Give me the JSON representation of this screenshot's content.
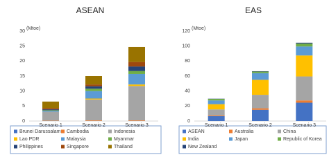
{
  "chart_data": [
    {
      "type": "stacked_bar",
      "title": "ASEAN",
      "y_label": "(Mtoe)",
      "categories": [
        "Scenario 1",
        "Scenario 2",
        "Scenario 3"
      ],
      "ylim": [
        0,
        30
      ],
      "yticks": [
        0,
        5,
        10,
        15,
        20,
        25,
        30
      ],
      "series": [
        {
          "name": "Brunei Darussalam",
          "color": "#4472c4",
          "values": [
            0,
            0,
            0
          ]
        },
        {
          "name": "Cambodia",
          "color": "#ed7d31",
          "values": [
            0.1,
            0.2,
            0.2
          ]
        },
        {
          "name": "Indonesia",
          "color": "#a5a5a5",
          "values": [
            3.0,
            7.0,
            11.5
          ]
        },
        {
          "name": "Lao PDR",
          "color": "#ffc000",
          "values": [
            0,
            0.3,
            0.5
          ]
        },
        {
          "name": "Malaysia",
          "color": "#5b9bd5",
          "values": [
            0.3,
            2.5,
            3.5
          ]
        },
        {
          "name": "Myanmar",
          "color": "#70ad47",
          "values": [
            0.2,
            0.8,
            1.0
          ]
        },
        {
          "name": "Philippines",
          "color": "#264478",
          "values": [
            0.3,
            0.8,
            1.5
          ]
        },
        {
          "name": "Singapore",
          "color": "#9e480e",
          "values": [
            0.4,
            0.6,
            1.5
          ]
        },
        {
          "name": "Thailand",
          "color": "#997300",
          "values": [
            2.2,
            2.8,
            5.0
          ]
        }
      ]
    },
    {
      "type": "stacked_bar",
      "title": "EAS",
      "y_label": "(Mtoe)",
      "categories": [
        "Scenario 1",
        "Scenario 2",
        "Scenario 3"
      ],
      "ylim": [
        0,
        120
      ],
      "yticks": [
        0,
        20,
        40,
        60,
        80,
        100,
        120
      ],
      "series": [
        {
          "name": "ASEAN",
          "color": "#4472c4",
          "values": [
            6.5,
            15,
            24.5
          ]
        },
        {
          "name": "Australia",
          "color": "#ed7d31",
          "values": [
            1,
            2,
            3
          ]
        },
        {
          "name": "China",
          "color": "#a5a5a5",
          "values": [
            8,
            18,
            32
          ]
        },
        {
          "name": "India",
          "color": "#ffc000",
          "values": [
            7,
            20,
            28
          ]
        },
        {
          "name": "Japan",
          "color": "#5b9bd5",
          "values": [
            5,
            9,
            12
          ]
        },
        {
          "name": "Republic of Korea",
          "color": "#70ad47",
          "values": [
            2,
            2,
            4
          ]
        },
        {
          "name": "New Zealand",
          "color": "#264478",
          "values": [
            0.3,
            0.5,
            1
          ]
        }
      ]
    }
  ]
}
